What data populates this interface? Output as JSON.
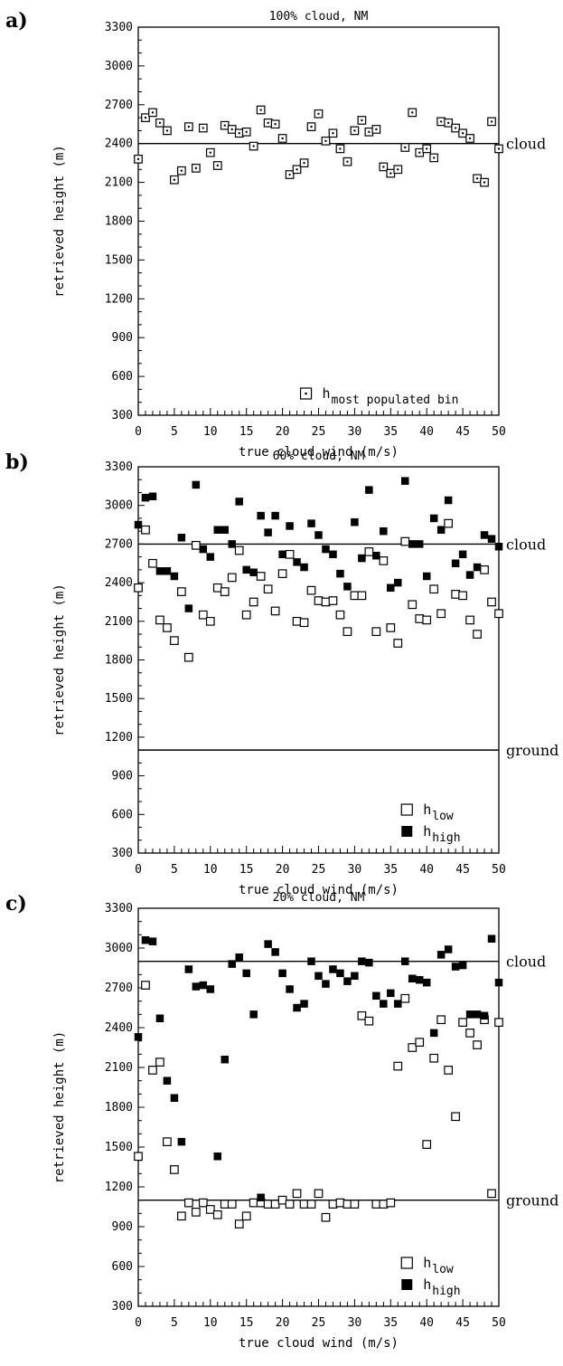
{
  "chart_data": [
    {
      "type": "scatter",
      "panel_label": "a)",
      "title": "100% cloud, NM",
      "xlabel": "true cloud wind (m/s)",
      "ylabel": "retrieved height (m)",
      "xlim": [
        0,
        50
      ],
      "ylim": [
        300,
        3300
      ],
      "xticks": [
        "0",
        "5",
        "10",
        "15",
        "20",
        "25",
        "30",
        "35",
        "40",
        "45",
        "50"
      ],
      "yticks": [
        "300",
        "600",
        "900",
        "1200",
        "1500",
        "1800",
        "2100",
        "2400",
        "2700",
        "3000",
        "3300"
      ],
      "grid": false,
      "legend_position": "bottom-right",
      "reference_lines": [
        {
          "label": "cloud",
          "y": 2400
        }
      ],
      "series": [
        {
          "name": "h",
          "name_subscript": "most populated bin",
          "marker": "dotted-square",
          "x": [
            0,
            1,
            2,
            3,
            4,
            5,
            6,
            7,
            8,
            9,
            10,
            11,
            12,
            13,
            14,
            15,
            16,
            17,
            18,
            19,
            20,
            21,
            22,
            23,
            24,
            25,
            26,
            27,
            28,
            29,
            30,
            31,
            32,
            33,
            34,
            35,
            36,
            37,
            38,
            39,
            40,
            41,
            42,
            43,
            44,
            45,
            46,
            47,
            48,
            49,
            50
          ],
          "y": [
            2280,
            2600,
            2640,
            2560,
            2500,
            2120,
            2190,
            2530,
            2210,
            2520,
            2330,
            2230,
            2540,
            2510,
            2480,
            2490,
            2380,
            2660,
            2560,
            2550,
            2440,
            2160,
            2200,
            2250,
            2530,
            2630,
            2420,
            2480,
            2360,
            2260,
            2500,
            2580,
            2490,
            2510,
            2220,
            2170,
            2200,
            2370,
            2640,
            2330,
            2360,
            2290,
            2570,
            2560,
            2520,
            2480,
            2440,
            2130,
            2100,
            2570,
            2360
          ]
        }
      ]
    },
    {
      "type": "scatter",
      "panel_label": "b)",
      "title": "60% cloud, NM",
      "xlabel": "true cloud wind (m/s)",
      "ylabel": "retrieved height (m)",
      "xlim": [
        0,
        50
      ],
      "ylim": [
        300,
        3300
      ],
      "xticks": [
        "0",
        "5",
        "10",
        "15",
        "20",
        "25",
        "30",
        "35",
        "40",
        "45",
        "50"
      ],
      "yticks": [
        "300",
        "600",
        "900",
        "1200",
        "1500",
        "1800",
        "2100",
        "2400",
        "2700",
        "3000",
        "3300"
      ],
      "grid": false,
      "legend_position": "bottom-right",
      "reference_lines": [
        {
          "label": "cloud",
          "y": 2700
        },
        {
          "label": "ground",
          "y": 1100
        }
      ],
      "series": [
        {
          "name": "h",
          "name_subscript": "low",
          "marker": "open-square",
          "x": [
            0,
            1,
            2,
            3,
            4,
            5,
            6,
            7,
            8,
            9,
            10,
            11,
            12,
            13,
            14,
            15,
            16,
            17,
            18,
            19,
            20,
            21,
            22,
            23,
            24,
            25,
            26,
            27,
            28,
            29,
            30,
            31,
            32,
            33,
            34,
            35,
            36,
            37,
            38,
            39,
            40,
            41,
            42,
            43,
            44,
            45,
            46,
            47,
            48,
            49,
            50
          ],
          "y": [
            2360,
            2810,
            2550,
            2110,
            2050,
            1950,
            2330,
            1820,
            2690,
            2150,
            2100,
            2360,
            2330,
            2440,
            2650,
            2150,
            2250,
            2450,
            2350,
            2180,
            2470,
            2620,
            2100,
            2090,
            2340,
            2260,
            2250,
            2260,
            2150,
            2020,
            2300,
            2300,
            2640,
            2020,
            2570,
            2050,
            1930,
            2720,
            2230,
            2120,
            2110,
            2350,
            2160,
            2860,
            2310,
            2300,
            2110,
            2000,
            2500,
            2250,
            2160
          ]
        },
        {
          "name": "h",
          "name_subscript": "high",
          "marker": "filled-square",
          "x": [
            0,
            1,
            2,
            3,
            4,
            5,
            6,
            7,
            8,
            9,
            10,
            11,
            12,
            13,
            14,
            15,
            16,
            17,
            18,
            19,
            20,
            21,
            22,
            23,
            24,
            25,
            26,
            27,
            28,
            29,
            30,
            31,
            32,
            33,
            34,
            35,
            36,
            37,
            38,
            39,
            40,
            41,
            42,
            43,
            44,
            45,
            46,
            47,
            48,
            49,
            50
          ],
          "y": [
            2850,
            3060,
            3070,
            2490,
            2490,
            2450,
            2750,
            2200,
            3160,
            2660,
            2600,
            2810,
            2810,
            2700,
            3030,
            2500,
            2480,
            2920,
            2790,
            2920,
            2620,
            2840,
            2560,
            2520,
            2860,
            2770,
            2660,
            2620,
            2470,
            2370,
            2870,
            2590,
            3120,
            2610,
            2800,
            2360,
            2400,
            3190,
            2700,
            2700,
            2450,
            2900,
            2810,
            3040,
            2550,
            2620,
            2460,
            2520,
            2770,
            2740,
            2680
          ]
        }
      ]
    },
    {
      "type": "scatter",
      "panel_label": "c)",
      "title": "20% cloud, NM",
      "xlabel": "true cloud wind (m/s)",
      "ylabel": "retrieved height (m)",
      "xlim": [
        0,
        50
      ],
      "ylim": [
        300,
        3300
      ],
      "xticks": [
        "0",
        "5",
        "10",
        "15",
        "20",
        "25",
        "30",
        "35",
        "40",
        "45",
        "50"
      ],
      "yticks": [
        "300",
        "600",
        "900",
        "1200",
        "1500",
        "1800",
        "2100",
        "2400",
        "2700",
        "3000",
        "3300"
      ],
      "grid": false,
      "legend_position": "bottom-right",
      "reference_lines": [
        {
          "label": "cloud",
          "y": 2900
        },
        {
          "label": "ground",
          "y": 1100
        }
      ],
      "series": [
        {
          "name": "h",
          "name_subscript": "low",
          "marker": "open-square",
          "x": [
            0,
            1,
            2,
            3,
            4,
            5,
            6,
            7,
            8,
            9,
            10,
            11,
            12,
            13,
            14,
            15,
            16,
            17,
            18,
            19,
            20,
            21,
            22,
            23,
            24,
            25,
            26,
            27,
            28,
            29,
            30,
            31,
            32,
            33,
            34,
            35,
            36,
            37,
            38,
            39,
            40,
            41,
            42,
            43,
            44,
            45,
            46,
            47,
            48,
            49,
            50
          ],
          "y": [
            1430,
            2720,
            2080,
            2140,
            1540,
            1330,
            980,
            1080,
            1010,
            1080,
            1030,
            990,
            1070,
            1070,
            920,
            980,
            1080,
            1080,
            1070,
            1070,
            1100,
            1070,
            1150,
            1070,
            1070,
            1150,
            970,
            1070,
            1080,
            1070,
            1070,
            2490,
            2450,
            1070,
            1070,
            1080,
            2110,
            2620,
            2250,
            2290,
            1520,
            2170,
            2460,
            2080,
            1730,
            2440,
            2360,
            2270,
            2460,
            1150,
            2440
          ]
        },
        {
          "name": "h",
          "name_subscript": "high",
          "marker": "filled-square",
          "x": [
            0,
            1,
            2,
            3,
            4,
            5,
            6,
            7,
            8,
            9,
            10,
            11,
            12,
            13,
            14,
            15,
            16,
            17,
            18,
            19,
            20,
            21,
            22,
            23,
            24,
            25,
            26,
            27,
            28,
            29,
            30,
            31,
            32,
            33,
            34,
            35,
            36,
            37,
            38,
            39,
            40,
            41,
            42,
            43,
            44,
            45,
            46,
            47,
            48,
            49,
            50
          ],
          "y": [
            2330,
            3060,
            3050,
            2470,
            2000,
            1870,
            1540,
            2840,
            2710,
            2720,
            2690,
            1430,
            2160,
            2880,
            2930,
            2810,
            2500,
            1120,
            3030,
            2970,
            2810,
            2690,
            2550,
            2580,
            2900,
            2790,
            2730,
            2840,
            2810,
            2750,
            2790,
            2900,
            2890,
            2640,
            2580,
            2660,
            2580,
            2900,
            2770,
            2760,
            2740,
            2360,
            2950,
            2990,
            2860,
            2870,
            2500,
            2500,
            2490,
            3070,
            2740
          ]
        }
      ]
    }
  ]
}
